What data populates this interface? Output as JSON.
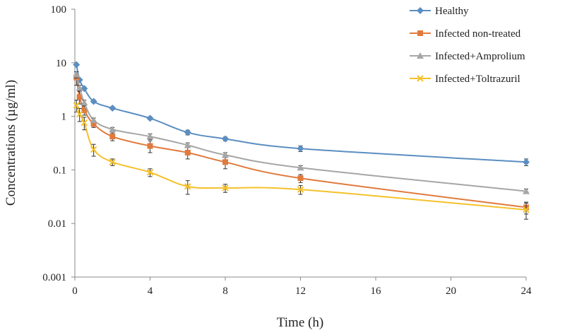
{
  "chart_data": {
    "type": "line",
    "title": "",
    "xlabel": "Time (h)",
    "ylabel": "Concentrations (µg/ml)",
    "yscale": "log",
    "xlim": [
      0,
      24
    ],
    "ylim": [
      0.001,
      100
    ],
    "x_ticks": [
      0,
      4,
      8,
      12,
      16,
      20,
      24
    ],
    "y_ticks": [
      0.001,
      0.01,
      0.1,
      1,
      10,
      100
    ],
    "y_tick_labels": [
      "0.001",
      "0.01",
      "0.1",
      "1",
      "10",
      "100"
    ],
    "grid": false,
    "legend_position": "top-right",
    "series": [
      {
        "name": "Healthy",
        "color": "#5b8ec1",
        "marker": "diamond",
        "x": [
          0.083,
          0.25,
          0.5,
          1,
          2,
          4,
          6,
          8,
          12,
          24
        ],
        "y": [
          9.2,
          4.8,
          3.3,
          1.9,
          1.42,
          0.92,
          0.5,
          0.38,
          0.25,
          0.14
        ],
        "err": [
          0.0,
          0.0,
          0.2,
          0.12,
          0.08,
          0.06,
          0.05,
          0.03,
          0.03,
          0.02
        ]
      },
      {
        "name": "Infected non-treated",
        "color": "#e07a3d",
        "marker": "square",
        "x": [
          0.083,
          0.25,
          0.5,
          1,
          2,
          4,
          6,
          8,
          12,
          24
        ],
        "y": [
          5.3,
          2.3,
          1.3,
          0.72,
          0.42,
          0.28,
          0.21,
          0.14,
          0.07,
          0.02
        ],
        "err": [
          1.5,
          0.6,
          0.25,
          0.1,
          0.07,
          0.07,
          0.05,
          0.035,
          0.012,
          0.005
        ]
      },
      {
        "name": "Infected+Amprolium",
        "color": "#a6a6a6",
        "marker": "triangle",
        "x": [
          0.083,
          0.25,
          0.5,
          1,
          2,
          4,
          6,
          8,
          12,
          24
        ],
        "y": [
          6.0,
          3.4,
          1.8,
          0.85,
          0.57,
          0.42,
          0.29,
          0.19,
          0.11,
          0.04
        ],
        "err": [
          0.8,
          0.4,
          0.2,
          0.08,
          0.05,
          0.05,
          0.03,
          0.02,
          0.01,
          0.004
        ]
      },
      {
        "name": "Infected+Toltrazuril",
        "color": "#f5c12b",
        "marker": "x",
        "x": [
          0.083,
          0.25,
          0.5,
          1,
          2,
          4,
          6,
          8,
          12,
          24
        ],
        "y": [
          1.6,
          1.1,
          0.76,
          0.24,
          0.14,
          0.09,
          0.049,
          0.046,
          0.043,
          0.018
        ],
        "err": [
          0.4,
          0.3,
          0.2,
          0.06,
          0.02,
          0.015,
          0.014,
          0.008,
          0.008,
          0.006
        ]
      }
    ]
  }
}
